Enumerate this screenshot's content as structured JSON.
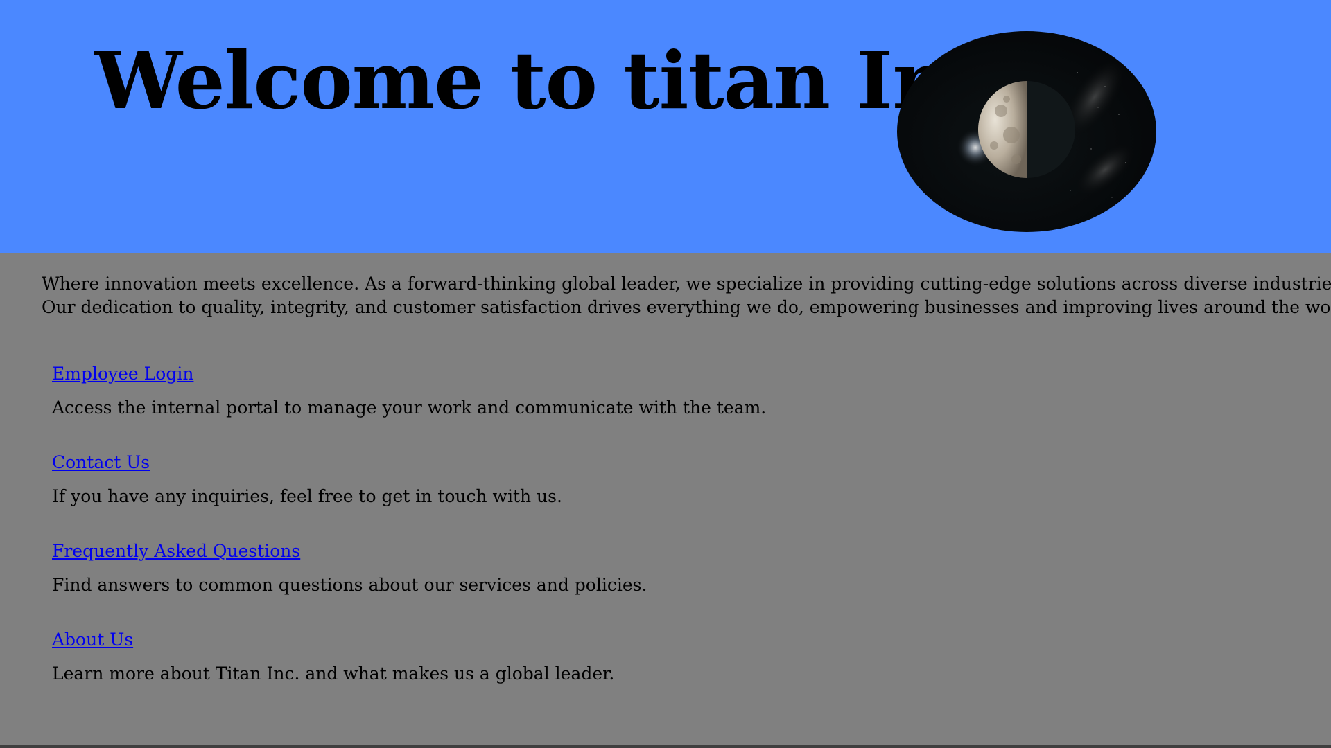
{
  "header": {
    "title": "Welcome to titan Inc.",
    "background_color": "#4b88ff",
    "image": "moon-photo"
  },
  "intro": {
    "line1": "Where innovation meets excellence. As a forward-thinking global leader, we specialize in providing cutting-edge solutions across diverse industries.",
    "line2": "Our dedication to quality, integrity, and customer satisfaction drives everything we do, empowering businesses and improving lives around the world."
  },
  "links": [
    {
      "label": "Employee Login",
      "description": "Access the internal portal to manage your work and communicate with the team."
    },
    {
      "label": "Contact Us",
      "description": "If you have any inquiries, feel free to get in touch with us."
    },
    {
      "label": "Frequently Asked Questions",
      "description": "Find answers to common questions about our services and policies."
    },
    {
      "label": "About Us",
      "description": "Learn more about Titan Inc. and what makes us a global leader."
    }
  ],
  "colors": {
    "page_background": "#808080",
    "link": "#0000ee",
    "text": "#000000"
  }
}
